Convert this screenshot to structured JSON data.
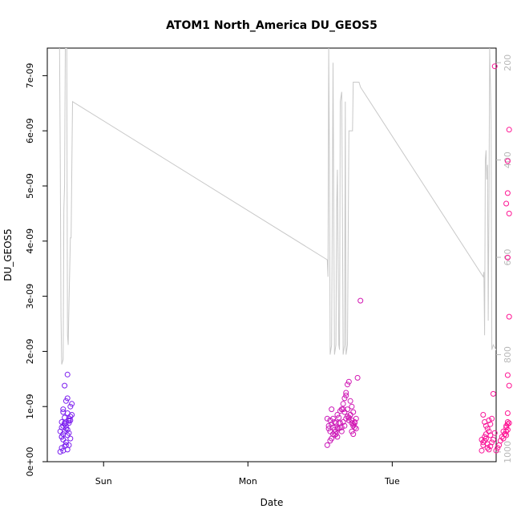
{
  "chart_data": {
    "type": "scatter",
    "title": "ATOM1 North_America DU_GEOS5",
    "xlabel": "Date",
    "ylabel": "DU_GEOS5",
    "x_axis": {
      "tick_labels": [
        "Sun",
        "Mon",
        "Tue"
      ],
      "tick_values_days": [
        1,
        2,
        3
      ],
      "range_days": [
        0.61,
        3.72
      ]
    },
    "y_axis": {
      "range": [
        0,
        7.5e-09
      ],
      "ticks": [
        0,
        1e-09,
        2e-09,
        3e-09,
        4e-09,
        5e-09,
        6e-09,
        7e-09
      ],
      "tick_labels": [
        "0e+00",
        "1e-09",
        "2e-09",
        "3e-09",
        "4e-09",
        "5e-09",
        "6e-09",
        "7e-09"
      ]
    },
    "y2_axis": {
      "reversed": true,
      "range": [
        1020,
        170
      ],
      "ticks": [
        200,
        400,
        600,
        800,
        1000
      ],
      "tick_labels": [
        "200",
        "400",
        "600",
        "800",
        "1000"
      ],
      "color": "#b8b8b8"
    },
    "points_color_gradient": [
      "#7a1ff0",
      "#ff1493"
    ],
    "grid": false,
    "series": [
      {
        "type": "points",
        "x": [
          0.7,
          0.71,
          0.7,
          0.72,
          0.71,
          0.73,
          0.72,
          0.74,
          0.73,
          0.75,
          0.74,
          0.72,
          0.76,
          0.75,
          0.73,
          0.76,
          0.71,
          0.74,
          0.72,
          0.75,
          0.73,
          0.76,
          0.77,
          0.75,
          0.74,
          0.73,
          0.72,
          0.71,
          0.76,
          0.75,
          0.77,
          0.74,
          0.73,
          0.72,
          0.71,
          0.75,
          0.76,
          0.77,
          0.78,
          0.78,
          0.77,
          0.76,
          2.55,
          2.56,
          2.57,
          2.55,
          2.58,
          2.56,
          2.57,
          2.59,
          2.58,
          2.6,
          2.57,
          2.59,
          2.61,
          2.6,
          2.58,
          2.62,
          2.61,
          2.59,
          2.63,
          2.62,
          2.6,
          2.64,
          2.63,
          2.61,
          2.65,
          2.64,
          2.62,
          2.66,
          2.65,
          2.63,
          2.67,
          2.66,
          2.64,
          2.68,
          2.67,
          2.65,
          2.69,
          2.68,
          2.66,
          2.7,
          2.69,
          2.67,
          2.71,
          2.7,
          2.68,
          2.72,
          2.71,
          2.69,
          2.73,
          2.72,
          2.7,
          2.74,
          2.73,
          2.71,
          2.75,
          2.74,
          2.72,
          2.75,
          2.73,
          2.74,
          2.72,
          2.73,
          2.76,
          2.78,
          3.62,
          3.63,
          3.64,
          3.62,
          3.65,
          3.63,
          3.66,
          3.64,
          3.67,
          3.65,
          3.68,
          3.66,
          3.67,
          3.68,
          3.69,
          3.7,
          3.71,
          3.66,
          3.69,
          3.67,
          3.64,
          3.63,
          3.65,
          3.68,
          3.72,
          3.73,
          3.74,
          3.75,
          3.76,
          3.77,
          3.78,
          3.79,
          3.8,
          3.8,
          3.79,
          3.8,
          3.81,
          3.79,
          3.8,
          3.81,
          3.8,
          3.79,
          3.81,
          3.8,
          3.8,
          3.81,
          3.79,
          3.8,
          3.81,
          3.7,
          3.71,
          3.77,
          3.78
        ],
        "y": [
          1.8e-10,
          2.5e-10,
          5.5e-10,
          6.5e-10,
          7.2e-10,
          7e-10,
          9.5e-10,
          1.1e-09,
          1.38e-09,
          1.58e-09,
          3.5e-10,
          4e-10,
          5.2e-10,
          5.8e-10,
          6.8e-10,
          7.5e-10,
          4.5e-10,
          3e-10,
          2e-10,
          2.2e-10,
          2.8e-10,
          3e-10,
          4.2e-10,
          4.8e-10,
          6e-10,
          8e-10,
          9e-10,
          6.2e-10,
          7e-10,
          8.8e-10,
          7.5e-10,
          6.5e-10,
          5.5e-10,
          5e-10,
          4.5e-10,
          1.15e-09,
          7.8e-10,
          8.2e-10,
          8.5e-10,
          1.05e-09,
          1e-09,
          7.4e-10,
          3e-10,
          6e-10,
          7.5e-10,
          7.8e-10,
          9.5e-10,
          6.5e-10,
          5.5e-10,
          5e-10,
          4.2e-10,
          4.8e-10,
          3.8e-10,
          6.2e-10,
          5.5e-10,
          7.2e-10,
          6.8e-10,
          6e-10,
          5e-10,
          7.8e-10,
          7e-10,
          4.5e-10,
          5.8e-10,
          6.2e-10,
          8e-10,
          7e-10,
          5.5e-10,
          9.2e-10,
          8.5e-10,
          7.2e-10,
          9.5e-10,
          6e-10,
          6.5e-10,
          1.05e-09,
          7e-10,
          7.8e-10,
          9e-10,
          6.2e-10,
          8.2e-10,
          1.2e-09,
          9.5e-10,
          7.5e-10,
          1.4e-09,
          1.15e-09,
          8.5e-10,
          1.45e-09,
          1.25e-09,
          7e-10,
          1.1e-09,
          9.5e-10,
          6.5e-10,
          1e-09,
          8e-10,
          7.2e-10,
          9e-10,
          8.5e-10,
          6e-10,
          7e-10,
          7.5e-10,
          7.8e-10,
          6.8e-10,
          6.2e-10,
          5.5e-10,
          5e-10,
          1.52e-09,
          2.92e-09,
          2e-10,
          3.5e-10,
          4.5e-10,
          4e-10,
          5e-10,
          3e-10,
          2.5e-10,
          3.8e-10,
          5.5e-10,
          4.2e-10,
          4.8e-10,
          3.2e-10,
          2.2e-10,
          2.8e-10,
          3.5e-10,
          4e-10,
          5.2e-10,
          6e-10,
          7.8e-10,
          7.5e-10,
          7.2e-10,
          8.5e-10,
          6.5e-10,
          6.8e-10,
          2e-10,
          2.5e-10,
          3e-10,
          3.8e-10,
          4.5e-10,
          5.5e-10,
          5e-10,
          4.8e-10,
          5.8e-10,
          7.2e-10,
          6.5e-10,
          8.8e-10,
          1.38e-09,
          6.2e-10,
          1.57e-09,
          2.63e-09,
          3.7e-09,
          4.68e-09,
          4.5e-09,
          4.87e-09,
          5.45e-09,
          6.02e-09,
          5.5e-10,
          6.8e-10,
          7e-10,
          1.23e-09,
          7.17e-09,
          4.2e-10,
          5e-10
        ]
      },
      {
        "type": "line",
        "axis": "y2",
        "color": "#c8c8c8",
        "x": [
          0.695,
          0.7,
          0.705,
          0.71,
          0.72,
          0.725,
          0.73,
          0.735,
          0.74,
          0.745,
          0.75,
          0.755,
          0.76,
          0.77,
          0.775,
          0.785,
          2.55,
          2.555,
          2.56,
          2.565,
          2.57,
          2.58,
          2.585,
          2.59,
          2.6,
          2.61,
          2.615,
          2.62,
          2.63,
          2.635,
          2.64,
          2.65,
          2.655,
          2.66,
          2.67,
          2.675,
          2.68,
          2.69,
          2.7,
          2.72,
          2.725,
          2.73,
          2.77,
          2.78,
          3.63,
          3.635,
          3.64,
          3.645,
          3.65,
          3.655,
          3.66,
          3.665,
          3.67,
          3.675,
          3.68,
          3.685,
          3.69,
          3.7,
          3.72,
          3.73,
          3.735,
          3.74,
          3.75,
          3.76,
          3.77
        ],
        "y": [
          170,
          400,
          720,
          820,
          810,
          500,
          450,
          170,
          170,
          170,
          760,
          780,
          700,
          560,
          560,
          280,
          605,
          640,
          170,
          400,
          800,
          780,
          500,
          200,
          800,
          780,
          500,
          420,
          780,
          790,
          280,
          260,
          500,
          800,
          780,
          280,
          800,
          780,
          340,
          340,
          340,
          240,
          240,
          250,
          640,
          630,
          760,
          400,
          380,
          440,
          410,
          730,
          500,
          170,
          240,
          320,
          790,
          780,
          790,
          790,
          820,
          820,
          820,
          820,
          240
        ]
      }
    ]
  }
}
